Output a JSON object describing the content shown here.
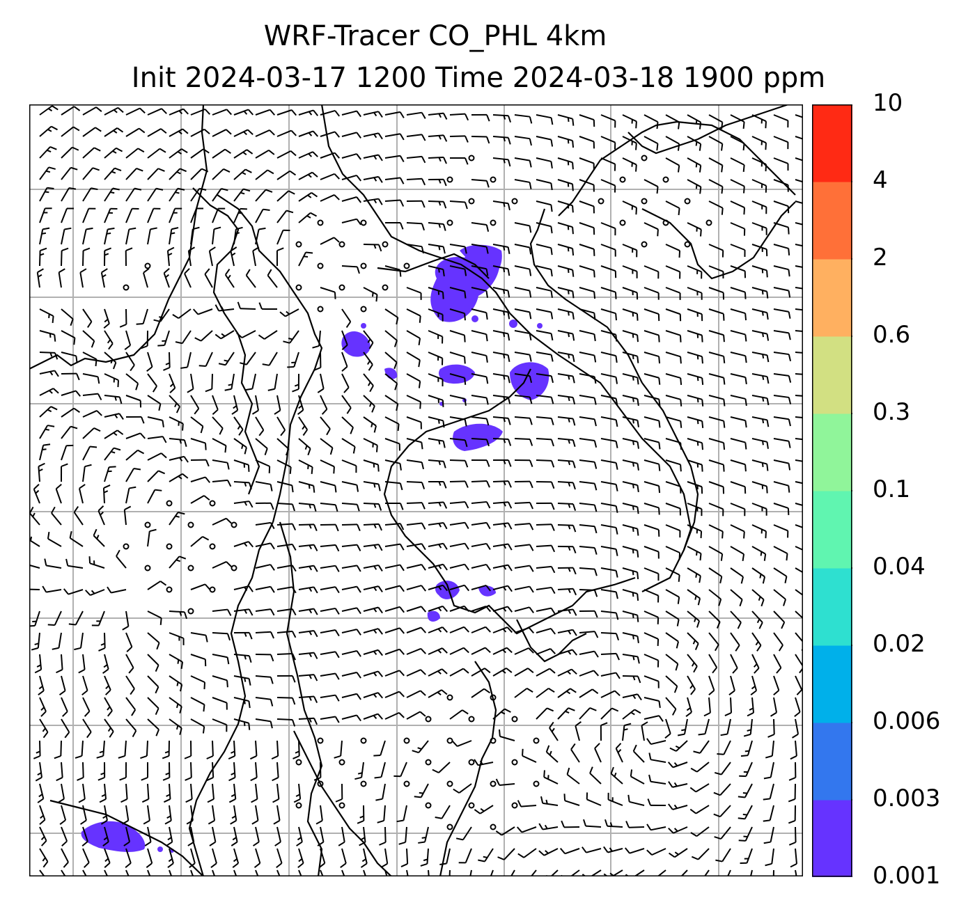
{
  "figure": {
    "title_line1": "WRF-Tracer CO_PHL 4km",
    "title_line2": "Init 2024-03-17 1200 Time 2024-03-18 1900 ppm"
  },
  "colorbar": {
    "levels": [
      "0.001",
      "0.003",
      "0.006",
      "0.02",
      "0.04",
      "0.1",
      "0.3",
      "0.6",
      "2",
      "4",
      "10"
    ],
    "colors": [
      "#6633ff",
      "#3377ee",
      "#00b0ea",
      "#2ee0d0",
      "#60f5b0",
      "#90f59a",
      "#d2e082",
      "#ffb060",
      "#ff7038",
      "#ff2a14"
    ]
  },
  "map": {
    "tracer_color": "#6633ff",
    "grid_color": "#b0b0b0",
    "lines_color": "#000000"
  }
}
